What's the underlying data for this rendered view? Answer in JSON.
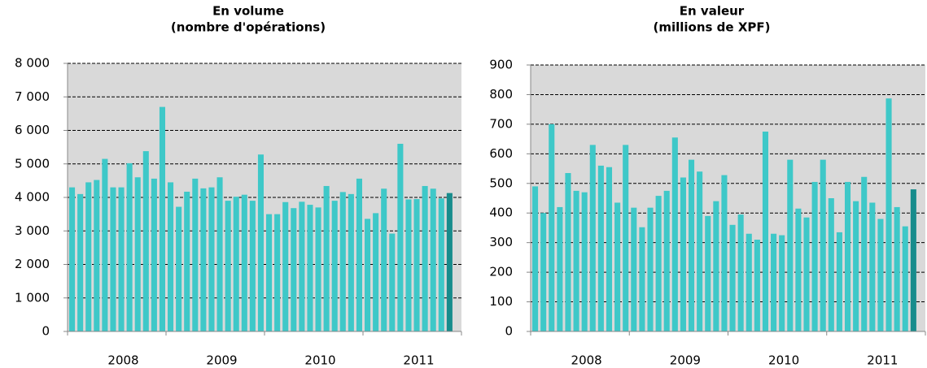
{
  "chart_data": [
    {
      "type": "bar",
      "title": [
        "En volume",
        "(nombre d'opérations)"
      ],
      "categories": [
        null,
        null,
        null,
        null,
        null,
        null,
        null,
        null,
        null,
        null,
        null,
        null,
        null,
        null,
        null,
        null,
        null,
        null,
        null,
        null,
        null,
        null,
        null,
        null,
        null,
        null,
        null,
        null,
        null,
        null,
        null,
        null,
        null,
        null,
        null,
        null,
        null,
        null,
        null,
        null,
        null,
        null,
        null,
        null,
        null,
        null,
        null
      ],
      "values": [
        4300,
        4100,
        4450,
        4520,
        5150,
        4300,
        4300,
        5020,
        4600,
        5380,
        4560,
        6700,
        4450,
        3720,
        4170,
        4560,
        4270,
        4300,
        4600,
        3900,
        4020,
        4080,
        3900,
        5280,
        3500,
        3500,
        3860,
        3680,
        3870,
        3780,
        3700,
        4340,
        3900,
        4160,
        4100,
        4560,
        3360,
        3530,
        4260,
        2920,
        5600,
        3940,
        3950,
        4340,
        4260,
        3970,
        4130
      ],
      "years": [
        "2008",
        "2009",
        "2010",
        "2011"
      ],
      "color": "#3ec8c8",
      "highlight": {
        "index": 46,
        "color": "#178c8c"
      },
      "ylim": [
        0,
        8000
      ],
      "yticks": [
        0,
        {
          "value": 1000,
          "label": "1 000"
        },
        {
          "value": 2000,
          "label": "2 000"
        },
        {
          "value": 3000,
          "label": "3 000"
        },
        {
          "value": 4000,
          "label": "4 000"
        },
        {
          "value": 5000,
          "label": "5 000"
        },
        {
          "value": 6000,
          "label": "6 000"
        },
        {
          "value": 7000,
          "label": "7 000"
        },
        {
          "value": 8000,
          "label": "8 000"
        }
      ],
      "grid": true
    },
    {
      "type": "bar",
      "title": [
        "En valeur",
        "(millions de XPF)"
      ],
      "categories": [
        null,
        null,
        null,
        null,
        null,
        null,
        null,
        null,
        null,
        null,
        null,
        null,
        null,
        null,
        null,
        null,
        null,
        null,
        null,
        null,
        null,
        null,
        null,
        null,
        null,
        null,
        null,
        null,
        null,
        null,
        null,
        null,
        null,
        null,
        null,
        null,
        null,
        null,
        null,
        null,
        null,
        null,
        null,
        null,
        null,
        null,
        null
      ],
      "values": [
        490,
        400,
        700,
        420,
        535,
        475,
        470,
        630,
        560,
        555,
        435,
        630,
        418,
        352,
        418,
        458,
        475,
        655,
        520,
        580,
        540,
        390,
        440,
        528,
        360,
        395,
        330,
        310,
        675,
        330,
        325,
        580,
        415,
        385,
        505,
        580,
        450,
        335,
        505,
        440,
        522,
        435,
        380,
        787,
        420,
        355,
        480
      ],
      "years": [
        "2008",
        "2009",
        "2010",
        "2011"
      ],
      "color": "#3ec8c8",
      "highlight": {
        "index": 46,
        "color": "#178c8c"
      },
      "ylim": [
        0,
        900
      ],
      "yticks": [
        0,
        100,
        200,
        300,
        400,
        500,
        600,
        700,
        800,
        900
      ],
      "grid": true
    }
  ]
}
